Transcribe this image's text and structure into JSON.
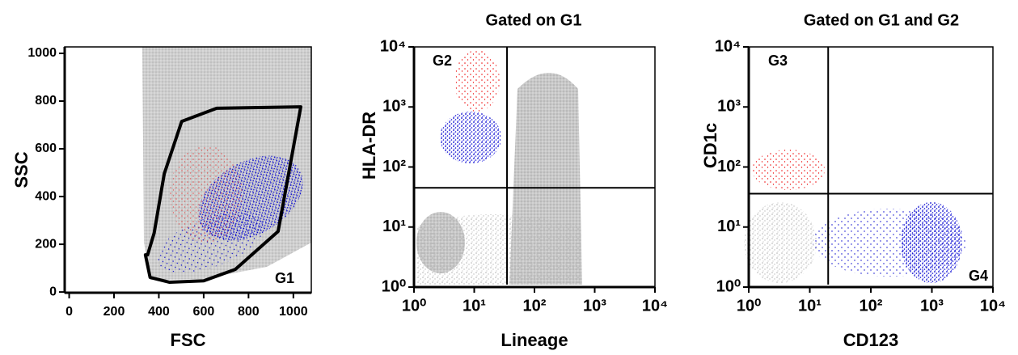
{
  "chart_data": [
    {
      "type": "scatter",
      "xlabel": "FSC",
      "ylabel": "SSC",
      "log": false,
      "xlim": [
        -20,
        1080
      ],
      "ylim": [
        -3,
        1027
      ],
      "xticks": [
        0,
        200,
        400,
        600,
        800,
        1000
      ],
      "yticks": [
        0,
        200,
        400,
        600,
        800,
        1000
      ],
      "gates": [
        {
          "x": [
            340,
            361,
            448,
            600,
            741,
            932,
            1033,
            658,
            502,
            424,
            379,
            350
          ],
          "y": [
            156,
            61,
            41,
            47,
            95,
            254,
            776,
            770,
            715,
            495,
            247,
            156
          ],
          "closed": true,
          "color": "#000000"
        }
      ],
      "gate_labels": [
        "G1"
      ]
    },
    {
      "type": "scatter",
      "title": "Gated on G1",
      "xlabel": "Lineage",
      "ylabel": "HLA-DR",
      "log": true,
      "xlim": [
        1,
        10000
      ],
      "ylim": [
        1,
        10000
      ],
      "xticks": [
        {
          "value": 1,
          "label": "10⁰"
        },
        {
          "value": 10,
          "label": "10¹"
        },
        {
          "value": 100,
          "label": "10²"
        },
        {
          "value": 1000,
          "label": "10³"
        },
        {
          "value": 10000,
          "label": "10⁴"
        }
      ],
      "yticks": [
        {
          "value": 1,
          "label": "10⁰"
        },
        {
          "value": 10,
          "label": "10¹"
        },
        {
          "value": 100,
          "label": "10²"
        },
        {
          "value": 1000,
          "label": "10³"
        },
        {
          "value": 10000,
          "label": "10⁴"
        }
      ],
      "gates": [
        {
          "x": [
            35,
            35
          ],
          "y": [
            10000,
            1.1
          ],
          "closed": false,
          "color": "#000000"
        },
        {
          "x": [
            1,
            10000
          ],
          "y": [
            45,
            45
          ],
          "closed": false,
          "color": "#000000"
        }
      ],
      "gate_labels": [
        "G2"
      ]
    },
    {
      "type": "scatter",
      "title": "Gated on G1 and G2",
      "xlabel": "CD123",
      "ylabel": "CD1c",
      "log": true,
      "xlim": [
        1,
        10000
      ],
      "ylim": [
        1,
        10000
      ],
      "xticks": [
        {
          "value": 1,
          "label": "10⁰"
        },
        {
          "value": 10,
          "label": "10¹"
        },
        {
          "value": 100,
          "label": "10²"
        },
        {
          "value": 1000,
          "label": "10³"
        },
        {
          "value": 10000,
          "label": "10⁴"
        }
      ],
      "yticks": [
        {
          "value": 1,
          "label": "10⁰"
        },
        {
          "value": 10,
          "label": "10¹"
        },
        {
          "value": 100,
          "label": "10²"
        },
        {
          "value": 1000,
          "label": "10³"
        },
        {
          "value": 10000,
          "label": "10⁴"
        }
      ],
      "gates": [
        {
          "x": [
            20,
            20
          ],
          "y": [
            10000,
            1.1
          ],
          "closed": false,
          "color": "#000000"
        },
        {
          "x": [
            1,
            10000
          ],
          "y": [
            36,
            36
          ],
          "closed": false,
          "color": "#000000"
        }
      ],
      "gate_labels": [
        "G3",
        "G4"
      ]
    }
  ]
}
